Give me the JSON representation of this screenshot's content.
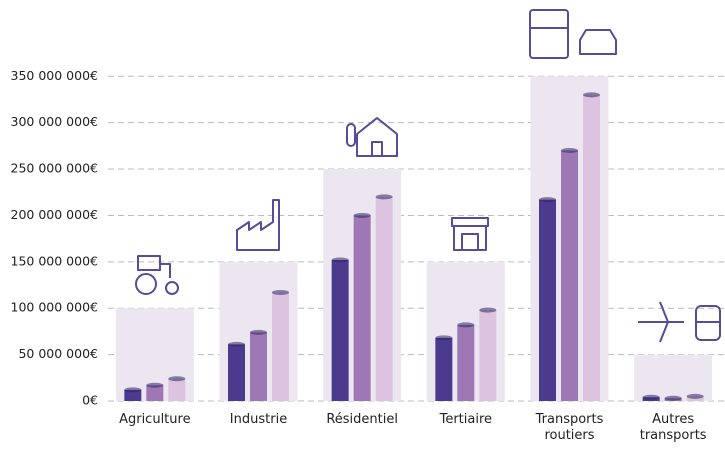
{
  "chart_data": {
    "type": "bar",
    "categories": [
      "Agriculture",
      "Industrie",
      "Résidentiel",
      "Tertiaire",
      "Transports routiers",
      "Autres transports"
    ],
    "series": [
      {
        "color": "#4a3b8f",
        "values": [
          12000000,
          61000000,
          152000000,
          68000000,
          217000000,
          4000000
        ]
      },
      {
        "color": "#9e78b5",
        "values": [
          17000000,
          74000000,
          200000000,
          82000000,
          270000000,
          3000000
        ]
      },
      {
        "color": "#dcc4e0",
        "values": [
          24000000,
          117000000,
          220000000,
          98000000,
          330000000,
          5000000
        ]
      }
    ],
    "backdrop_values": [
      100000000,
      150000000,
      250000000,
      150000000,
      350000000,
      50000000
    ],
    "backdrop_color": "#ece6f1",
    "ylim": [
      0,
      360000000
    ],
    "yticks": [
      {
        "value": 0,
        "label": "0€"
      },
      {
        "value": 50000000,
        "label": "50 000 000€"
      },
      {
        "value": 100000000,
        "label": "100 000 000€"
      },
      {
        "value": 150000000,
        "label": "150 000 000€"
      },
      {
        "value": 200000000,
        "label": "200 000 000€"
      },
      {
        "value": 250000000,
        "label": "250 000 000€"
      },
      {
        "value": 300000000,
        "label": "300 000 000€"
      },
      {
        "value": 350000000,
        "label": "350 000 000€"
      }
    ],
    "grid": true
  }
}
